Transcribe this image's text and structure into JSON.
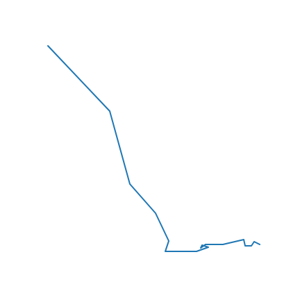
{
  "chart_data": {
    "type": "line",
    "title": "",
    "xlabel": "",
    "ylabel": "",
    "axes_visible": false,
    "grid": false,
    "legend": "none",
    "series": [
      {
        "color": "#1f77b4",
        "points": [
          [
            69,
            66
          ],
          [
            158,
            160
          ],
          [
            187,
            265
          ],
          [
            224,
            307
          ],
          [
            243,
            347
          ],
          [
            238,
            362
          ],
          [
            283,
            362
          ],
          [
            300,
            356
          ],
          [
            291,
            353
          ],
          [
            289,
            357
          ],
          [
            296,
            352
          ],
          [
            321,
            352
          ],
          [
            351,
            345
          ],
          [
            353,
            354
          ],
          [
            362,
            354
          ],
          [
            366,
            348
          ],
          [
            374,
            352
          ]
        ]
      }
    ]
  }
}
